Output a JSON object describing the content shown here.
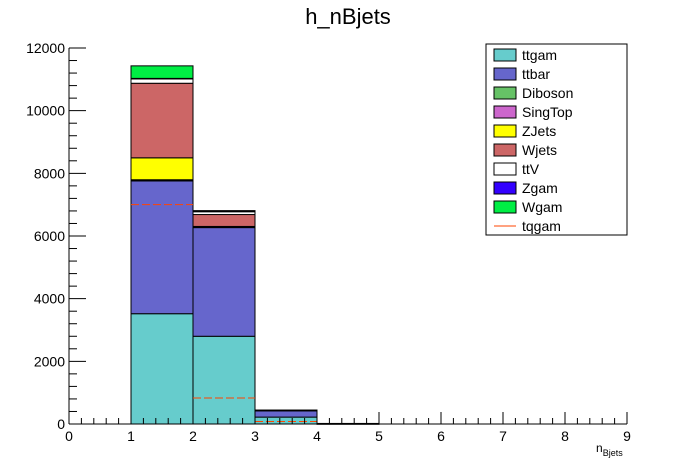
{
  "chart_data": {
    "type": "bar",
    "stacked": true,
    "title": "h_nBjets",
    "xlabel_main": "n",
    "xlabel_sub": "Bjets",
    "ylabel": "",
    "xlim": [
      0,
      9
    ],
    "ylim": [
      0,
      12000
    ],
    "x_ticks": [
      "0",
      "1",
      "2",
      "3",
      "4",
      "5",
      "6",
      "7",
      "8",
      "9"
    ],
    "y_ticks": [
      "0",
      "2000",
      "4000",
      "6000",
      "8000",
      "10000",
      "12000"
    ],
    "bins": [
      [
        1,
        2
      ],
      [
        2,
        3
      ],
      [
        3,
        4
      ],
      [
        4,
        5
      ]
    ],
    "series": [
      {
        "name": "ttgam",
        "color": "#66cccc",
        "values": [
          3520,
          2800,
          220,
          10
        ]
      },
      {
        "name": "ttbar",
        "color": "#6666cc",
        "values": [
          4240,
          3480,
          200,
          8
        ]
      },
      {
        "name": "Diboson",
        "color": "#66c266",
        "values": [
          15,
          5,
          0,
          0
        ]
      },
      {
        "name": "SingTop",
        "color": "#cc66cc",
        "values": [
          20,
          10,
          0,
          0
        ]
      },
      {
        "name": "ZJets",
        "color": "#ffff00",
        "values": [
          700,
          10,
          0,
          0
        ]
      },
      {
        "name": "Wjets",
        "color": "#cc6666",
        "values": [
          2380,
          380,
          20,
          0
        ]
      },
      {
        "name": "ttV",
        "color": "#ffffff",
        "values": [
          150,
          100,
          5,
          0
        ]
      },
      {
        "name": "Zgam",
        "color": "#3300ff",
        "values": [
          5,
          5,
          0,
          0
        ]
      },
      {
        "name": "Wgam",
        "color": "#00ee44",
        "values": [
          400,
          20,
          0,
          0
        ]
      }
    ],
    "line_series": {
      "name": "tqgam",
      "color": "#ff4400",
      "values": [
        7000,
        830,
        80,
        0
      ]
    },
    "legend_position": "top-right"
  }
}
